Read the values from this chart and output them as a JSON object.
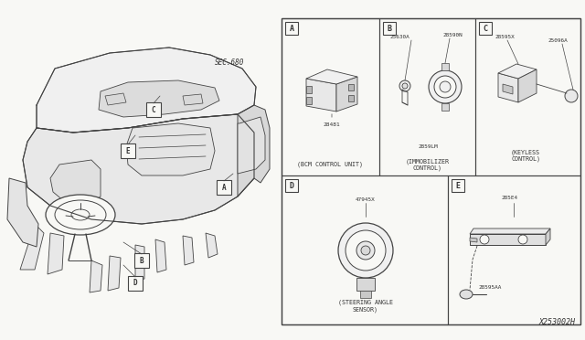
{
  "bg_color": "#f8f8f5",
  "line_color": "#444444",
  "text_color": "#333333",
  "fig_width": 6.4,
  "fig_height": 3.72,
  "diagram_ref": "X253002H",
  "sec_label": "SEC.680",
  "panel_labels": [
    "A",
    "B",
    "C",
    "D",
    "E"
  ],
  "part_numbers": {
    "A": [
      "28481"
    ],
    "B": [
      "25630A",
      "28590N",
      "2859LM"
    ],
    "C": [
      "28595X",
      "25096A"
    ],
    "D": [
      "47945X"
    ],
    "E": [
      "285E4",
      "28595AA"
    ]
  },
  "panel_names": {
    "A": "(BCM CONTROL UNIT)",
    "B": "(IMMOBILIZER\nCONTROL)",
    "C": "(KEYLESS\nCONTROL)",
    "D": "(STEERING ANGLE\nSENSOR)",
    "E": ""
  }
}
